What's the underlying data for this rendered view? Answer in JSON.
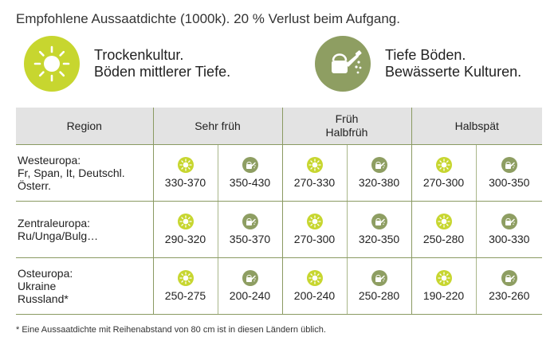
{
  "title": "Empfohlene Aussaatdichte (1000k). 20 %  Verlust beim Aufgang.",
  "legend": {
    "sun": {
      "icon": "sun-icon",
      "line1": "Trockenkultur.",
      "line2": "Böden mittlerer Tiefe."
    },
    "water": {
      "icon": "watering-can-icon",
      "line1": "Tiefe Böden.",
      "line2": "Bewässerte Kulturen."
    }
  },
  "colors": {
    "sun": "#c7d62f",
    "water": "#8e9e62",
    "line": "#8a9a62",
    "header_bg": "#e3e3e3"
  },
  "table": {
    "headers": {
      "region": "Region",
      "group1": "Sehr früh",
      "group2_line1": "Früh",
      "group2_line2": "Halbfrüh",
      "group3": "Halbspät"
    },
    "rows": [
      {
        "region_name": "Westeuropa:",
        "region_detail1": "Fr, Span, It, Deutschl.",
        "region_detail2": "Österr.",
        "values": [
          "330-370",
          "350-430",
          "270-330",
          "320-380",
          "270-300",
          "300-350"
        ]
      },
      {
        "region_name": "Zentraleuropa:",
        "region_detail1": "Ru/Unga/Bulg…",
        "region_detail2": "",
        "values": [
          "290-320",
          "350-370",
          "270-300",
          "320-350",
          "250-280",
          "300-330"
        ]
      },
      {
        "region_name": "Osteuropa:",
        "region_detail1": "Ukraine",
        "region_detail2": "Russland*",
        "values": [
          "250-275",
          "200-240",
          "200-240",
          "250-280",
          "190-220",
          "230-260"
        ]
      }
    ]
  },
  "footnote": "* Eine Aussaatdichte mit Reihenabstand von 80 cm ist in diesen Ländern üblich."
}
